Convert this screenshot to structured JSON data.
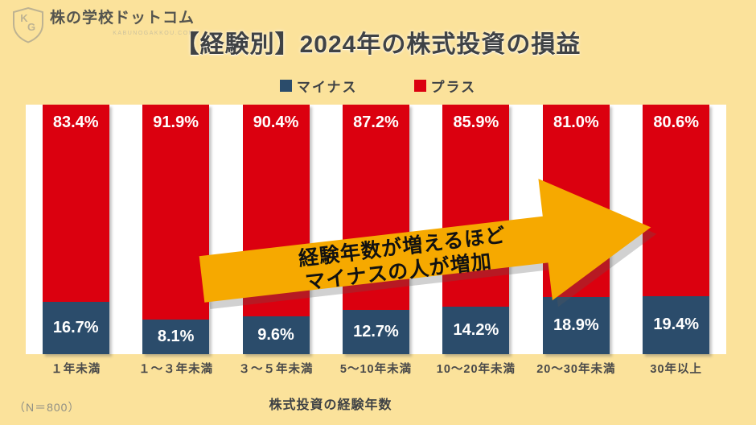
{
  "logo": {
    "monogram_top": "K",
    "monogram_bottom": "G",
    "brand": "株の学校ドットコム",
    "domain": "KABUNOGAKKOU.COM"
  },
  "header": {
    "title": "【経験別】2024年の株式投資の損益"
  },
  "legend": {
    "items": [
      {
        "label": "マイナス",
        "color": "#2B4C6B"
      },
      {
        "label": "プラス",
        "color": "#DB000F"
      }
    ]
  },
  "chart_data": {
    "type": "bar",
    "stacked": true,
    "percent_stack": true,
    "unit": "%",
    "categories": [
      "１年未満",
      "１～３年未満",
      "３～５年未満",
      "5～10年未満",
      "10～20年未満",
      "20～30年未満",
      "30年以上"
    ],
    "series": [
      {
        "name": "プラス",
        "color": "#DB000F",
        "values": [
          83.4,
          91.9,
          90.4,
          87.2,
          85.9,
          81.0,
          80.6
        ]
      },
      {
        "name": "マイナス",
        "color": "#2B4C6B",
        "values": [
          16.7,
          8.1,
          9.6,
          12.7,
          14.2,
          18.9,
          19.4
        ]
      }
    ],
    "title": "【経験別】2024年の株式投資の損益",
    "xlabel": "株式投資の経験年数",
    "ylabel": "",
    "ylim": [
      0,
      100
    ],
    "grid": false,
    "legend_position": "top",
    "value_label_suffix": "%"
  },
  "annotation": {
    "text_line1": "経験年数が増えるほど",
    "text_line2": "マイナスの人が増加",
    "arrow_color": "#F6A900"
  },
  "footer": {
    "sample_note": "（N＝800）",
    "xlabel": "株式投資の経験年数"
  },
  "colors": {
    "background": "#FBE29B",
    "plot_background": "#FFFFFF",
    "title_text": "#3F4245",
    "category_text": "#4A4A4A",
    "note_text": "#8F8F85",
    "value_text": "#FFFFFF"
  }
}
